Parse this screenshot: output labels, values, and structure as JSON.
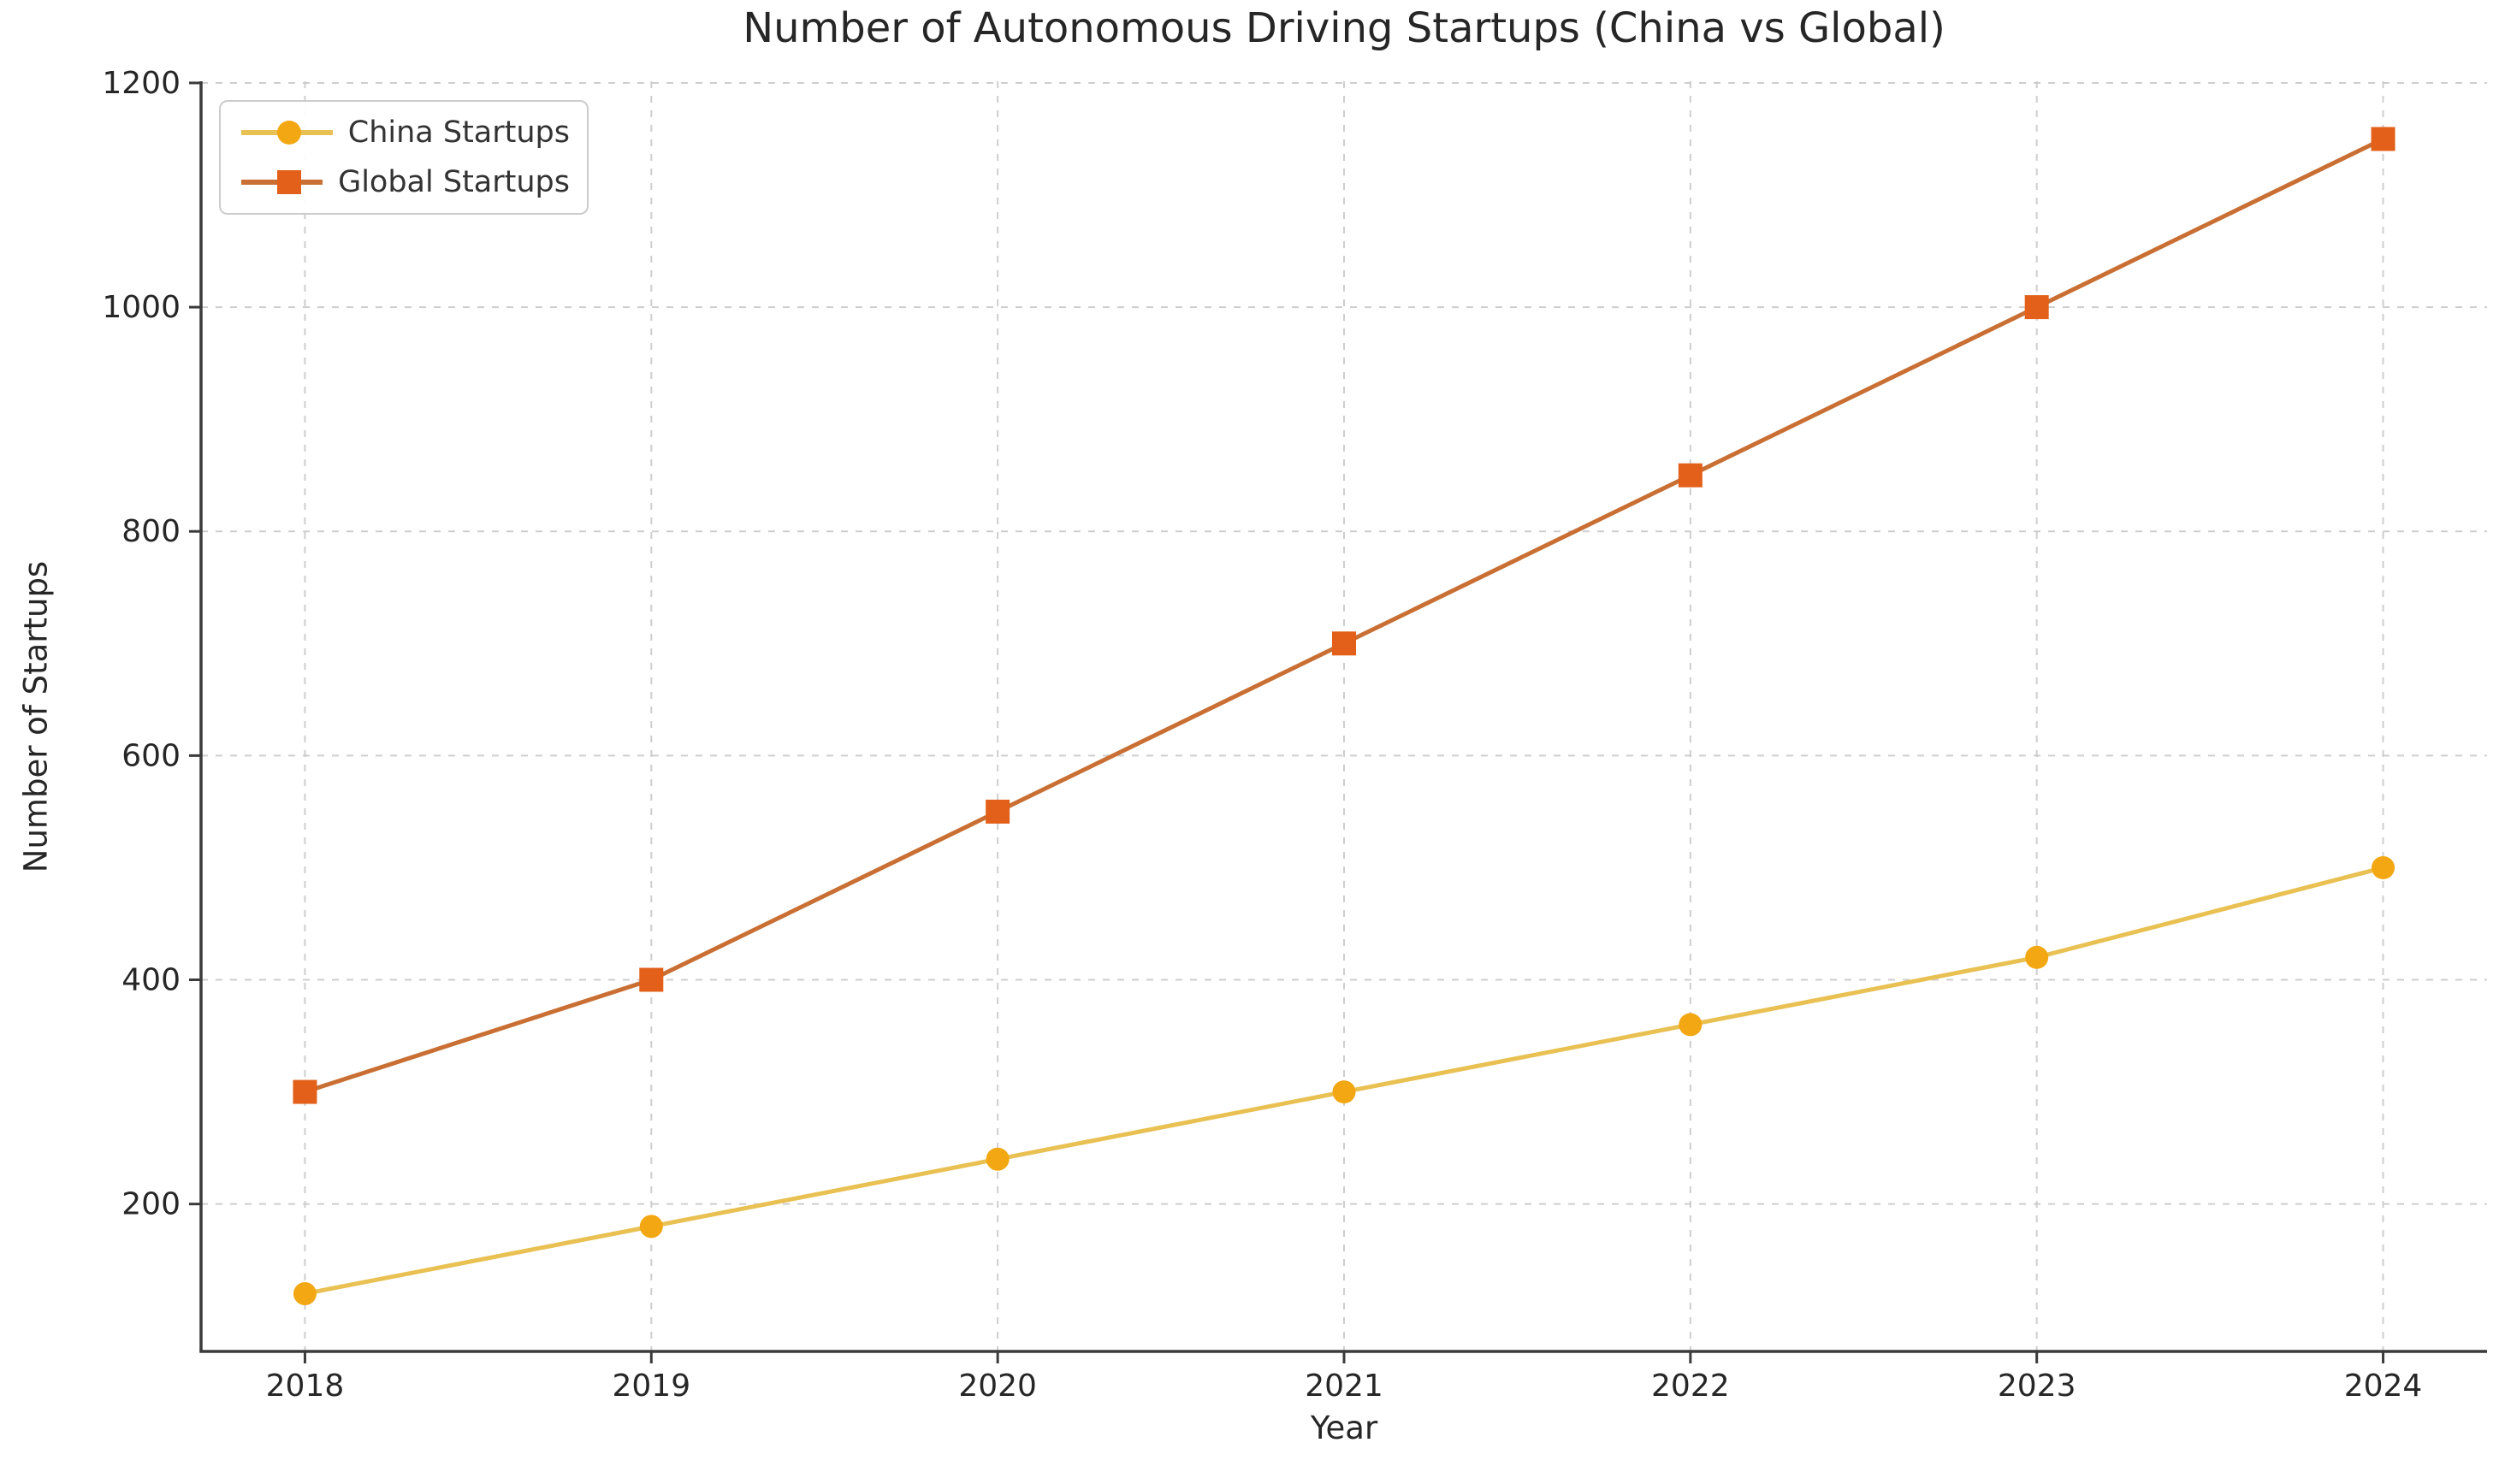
{
  "title": "Number of Autonomous Driving Startups (China vs Global)",
  "chart_data": {
    "type": "line",
    "title": "Number of Autonomous Driving Startups (China vs Global)",
    "xlabel": "Year",
    "ylabel": "Number of Startups",
    "x": [
      2018,
      2019,
      2020,
      2021,
      2022,
      2023,
      2024
    ],
    "series": [
      {
        "name": "China Startups",
        "values": [
          120,
          180,
          240,
          300,
          360,
          420,
          500
        ],
        "line_color": "#e9c052",
        "marker_color": "#f3a712",
        "marker": "circle"
      },
      {
        "name": "Global Startups",
        "values": [
          300,
          400,
          550,
          700,
          850,
          1000,
          1150
        ],
        "line_color": "#c96f33",
        "marker_color": "#e2601a",
        "marker": "square"
      }
    ],
    "yticks": [
      200,
      400,
      600,
      800,
      1000,
      1200
    ],
    "xlim": [
      2017.7,
      2024.3
    ],
    "ylim": [
      68.5,
      1201.5
    ],
    "grid": true,
    "grid_style": "dashed",
    "legend_position": "upper left"
  },
  "style": {
    "grid_color": "#c9c9c9",
    "spine_color": "#3b3b3b",
    "tick_label_color": "#262626",
    "background": "#ffffff"
  }
}
